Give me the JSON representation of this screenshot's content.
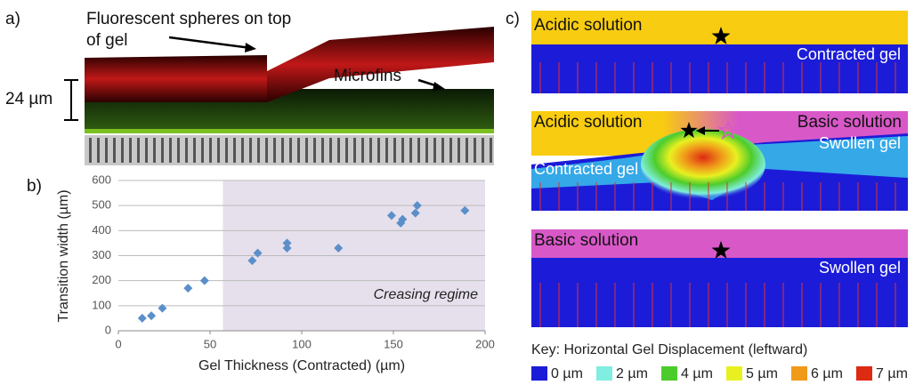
{
  "panel_a": {
    "label": "a)",
    "annotation_lines": [
      "Fluorescent spheres on top",
      "of gel"
    ],
    "microfins": "Microfins",
    "scale_bar": "24 µm"
  },
  "chart_data": {
    "type": "scatter",
    "label": "b)",
    "x_label": "Gel Thickness (Contracted) (µm)",
    "y_label": "Transition width (µm)",
    "x": [
      13,
      18,
      24,
      38,
      47,
      73,
      76,
      92,
      92,
      120,
      149,
      154,
      155,
      162,
      163,
      189
    ],
    "values": [
      50,
      60,
      90,
      170,
      200,
      280,
      310,
      330,
      350,
      330,
      460,
      430,
      445,
      470,
      500,
      480
    ],
    "color": "#5b8fc9",
    "xlim": [
      0,
      200
    ],
    "ylim": [
      0,
      600
    ],
    "xticks": [
      0,
      50,
      100,
      150,
      200
    ],
    "yticks": [
      0,
      100,
      200,
      300,
      400,
      500,
      600
    ],
    "grid": true,
    "shaded_region": {
      "x": [
        57,
        200
      ],
      "label": "Creasing regime",
      "color": "#e6e0ec"
    }
  },
  "panel_c": {
    "label": "c)",
    "top": {
      "solution": "Acidic solution",
      "gel": "Contracted gel"
    },
    "middle": {
      "left_solution": "Acidic solution",
      "right_solution": "Basic solution",
      "right_gel": "Swollen gel",
      "left_gel": "Contracted gel"
    },
    "bottom": {
      "solution": "Basic solution",
      "gel": "Swollen gel"
    },
    "key_title": "Key: Horizontal Gel Displacement (leftward)",
    "key": [
      {
        "label": "0 µm",
        "color": "#1c1cd8"
      },
      {
        "label": "2 µm",
        "color": "#80eee0"
      },
      {
        "label": "4 µm",
        "color": "#4ccc2c"
      },
      {
        "label": "5 µm",
        "color": "#e8f020"
      },
      {
        "label": "6 µm",
        "color": "#f09a1a"
      },
      {
        "label": "7 µm",
        "color": "#dd2a12"
      }
    ]
  }
}
